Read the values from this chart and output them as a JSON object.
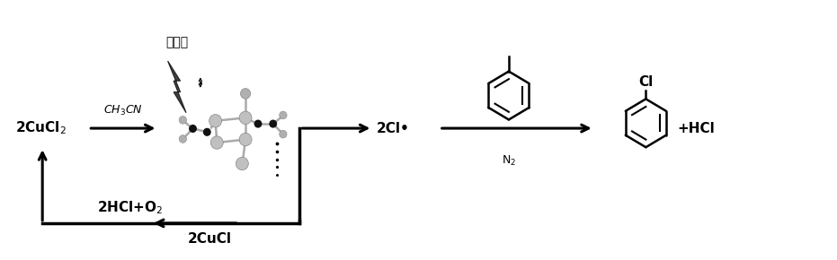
{
  "bg_color": "#ffffff",
  "figsize": [
    9.31,
    2.9
  ],
  "dpi": 100,
  "labels": {
    "visible_light": "可见光",
    "cucl2": "2CuCl$_2$",
    "ch3cn": "CH$_3$CN",
    "cl_radical": "2Cl•",
    "n2": "N$_2$",
    "hcl_o2": "2HCl+O$_2$",
    "cucl": "2CuCl",
    "hcl": "+HCl"
  },
  "xlim": [
    0,
    10
  ],
  "ylim": [
    0,
    3
  ],
  "lw": 2.2,
  "fs_main": 11,
  "fs_label": 9,
  "fs_chinese": 10
}
